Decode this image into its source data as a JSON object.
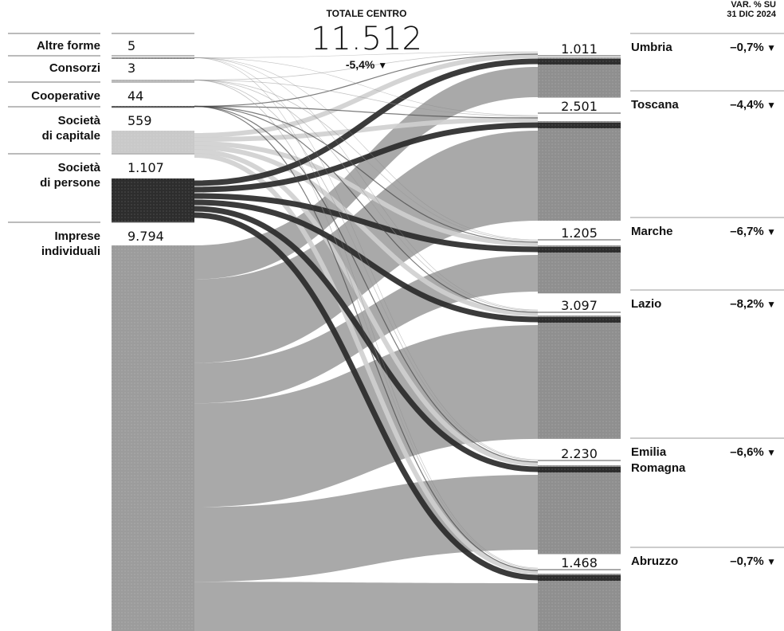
{
  "chart_data": {
    "type": "sankey",
    "total": {
      "label": "TOTALE CENTRO",
      "value": "11.512",
      "change": "-5,4%",
      "arrow": "▼"
    },
    "header_right": [
      "VAR. % SU",
      "31 DIC 2024"
    ],
    "sources": [
      {
        "name_lines": [
          "Altre forme"
        ],
        "value": 5,
        "value_label": "5",
        "shade": "#8a8a8a"
      },
      {
        "name_lines": [
          "Consorzi"
        ],
        "value": 3,
        "value_label": "3",
        "shade": "#b5b5b5"
      },
      {
        "name_lines": [
          "Cooperative"
        ],
        "value": 44,
        "value_label": "44",
        "shade": "#3a3a3a"
      },
      {
        "name_lines": [
          "Società",
          "di capitale"
        ],
        "value": 559,
        "value_label": "559",
        "shade": "#c9c9c9"
      },
      {
        "name_lines": [
          "Società",
          "di persone"
        ],
        "value": 1107,
        "value_label": "1.107",
        "shade": "#2d2d2d"
      },
      {
        "name_lines": [
          "Imprese",
          "individuali"
        ],
        "value": 9794,
        "value_label": "9.794",
        "shade": "#9c9c9c"
      }
    ],
    "targets": [
      {
        "name_lines": [
          "Umbria"
        ],
        "value": 1011,
        "value_label": "1.011",
        "change": "–0,7%"
      },
      {
        "name_lines": [
          "Toscana"
        ],
        "value": 2501,
        "value_label": "2.501",
        "change": "–4,4%"
      },
      {
        "name_lines": [
          "Marche"
        ],
        "value": 1205,
        "value_label": "1.205",
        "change": "–6,7%"
      },
      {
        "name_lines": [
          "Lazio"
        ],
        "value": 3097,
        "value_label": "3.097",
        "change": "–8,2%"
      },
      {
        "name_lines": [
          "Emilia",
          "Romagna"
        ],
        "value": 2230,
        "value_label": "2.230",
        "change": "–6,6%"
      },
      {
        "name_lines": [
          "Abruzzo"
        ],
        "value": 1468,
        "value_label": "1.468",
        "change": "–0,7%"
      }
    ],
    "colors": {
      "imprese": "#9c9c9c",
      "persone": "#2d2d2d",
      "capitale": "#c9c9c9",
      "cooperative": "#3a3a3a",
      "consorzi": "#b5b5b5",
      "altre": "#8a8a8a",
      "target_bar": "#8f8f8f"
    }
  }
}
